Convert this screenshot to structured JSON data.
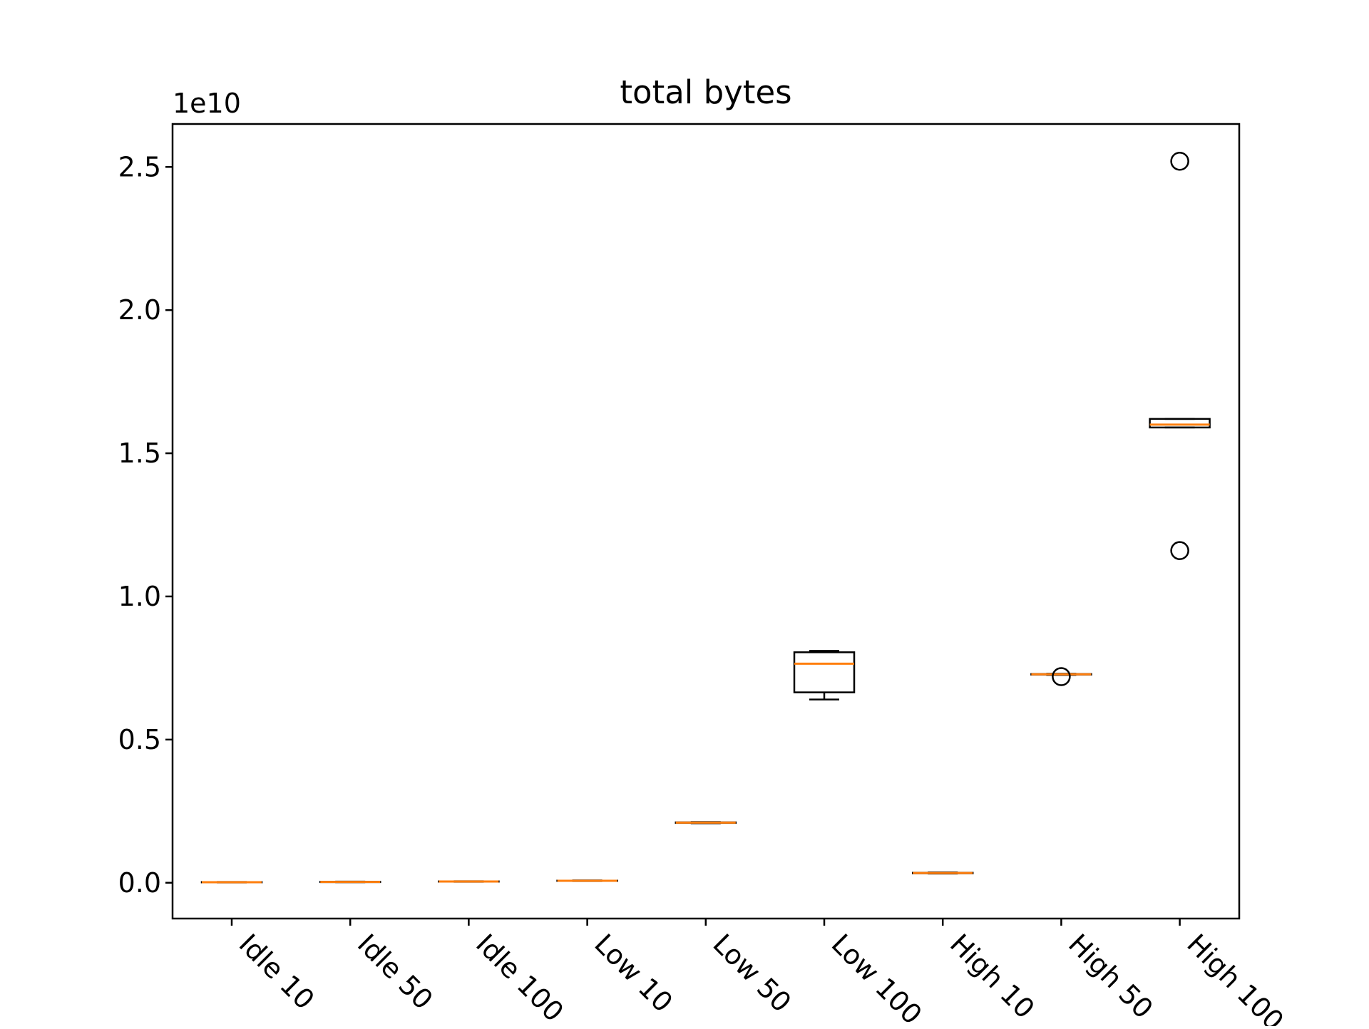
{
  "chart_data": {
    "type": "box",
    "title": "total bytes",
    "xlabel": "",
    "ylabel": "",
    "y_offset_label": "1e10",
    "y_scale_factor": 10000000000,
    "ylim": [
      -1250000000.0,
      26500000000.0
    ],
    "yticks": [
      {
        "value": 0,
        "label": "0.0"
      },
      {
        "value": 5000000000.0,
        "label": "0.5"
      },
      {
        "value": 10000000000.0,
        "label": "1.0"
      },
      {
        "value": 15000000000.0,
        "label": "1.5"
      },
      {
        "value": 20000000000.0,
        "label": "2.0"
      },
      {
        "value": 25000000000.0,
        "label": "2.5"
      }
    ],
    "categories": [
      "Idle 10",
      "Idle 50",
      "Idle 100",
      "Low 10",
      "Low 50",
      "Low 100",
      "High 10",
      "High 50",
      "High 100"
    ],
    "boxes": [
      {
        "category": "Idle 10",
        "whisker_low": 10000000.0,
        "q1": 15000000.0,
        "median": 20000000.0,
        "q3": 25000000.0,
        "whisker_high": 30000000.0,
        "outliers": []
      },
      {
        "category": "Idle 50",
        "whisker_low": 20000000.0,
        "q1": 25000000.0,
        "median": 30000000.0,
        "q3": 35000000.0,
        "whisker_high": 40000000.0,
        "outliers": []
      },
      {
        "category": "Idle 100",
        "whisker_low": 35000000.0,
        "q1": 40000000.0,
        "median": 45000000.0,
        "q3": 50000000.0,
        "whisker_high": 55000000.0,
        "outliers": []
      },
      {
        "category": "Low 10",
        "whisker_low": 60000000.0,
        "q1": 65000000.0,
        "median": 70000000.0,
        "q3": 75000000.0,
        "whisker_high": 80000000.0,
        "outliers": []
      },
      {
        "category": "Low 50",
        "whisker_low": 2080000000.0,
        "q1": 2090000000.0,
        "median": 2100000000.0,
        "q3": 2110000000.0,
        "whisker_high": 2120000000.0,
        "outliers": []
      },
      {
        "category": "Low 100",
        "whisker_low": 6400000000.0,
        "q1": 6650000000.0,
        "median": 7650000000.0,
        "q3": 8050000000.0,
        "whisker_high": 8100000000.0,
        "outliers": []
      },
      {
        "category": "High 10",
        "whisker_low": 320000000.0,
        "q1": 330000000.0,
        "median": 340000000.0,
        "q3": 350000000.0,
        "whisker_high": 360000000.0,
        "outliers": []
      },
      {
        "category": "High 50",
        "whisker_low": 7260000000.0,
        "q1": 7270000000.0,
        "median": 7280000000.0,
        "q3": 7290000000.0,
        "whisker_high": 7300000000.0,
        "outliers": [
          7200000000.0
        ]
      },
      {
        "category": "High 100",
        "whisker_low": 15900000000.0,
        "q1": 15900000000.0,
        "median": 16000000000.0,
        "q3": 16200000000.0,
        "whisker_high": 16200000000.0,
        "outliers": [
          25200000000.0,
          11600000000.0
        ]
      }
    ],
    "grid": false,
    "colors": {
      "box": "#000000",
      "median": "#ff7f0e",
      "axis": "#000000",
      "background": "#ffffff"
    }
  }
}
